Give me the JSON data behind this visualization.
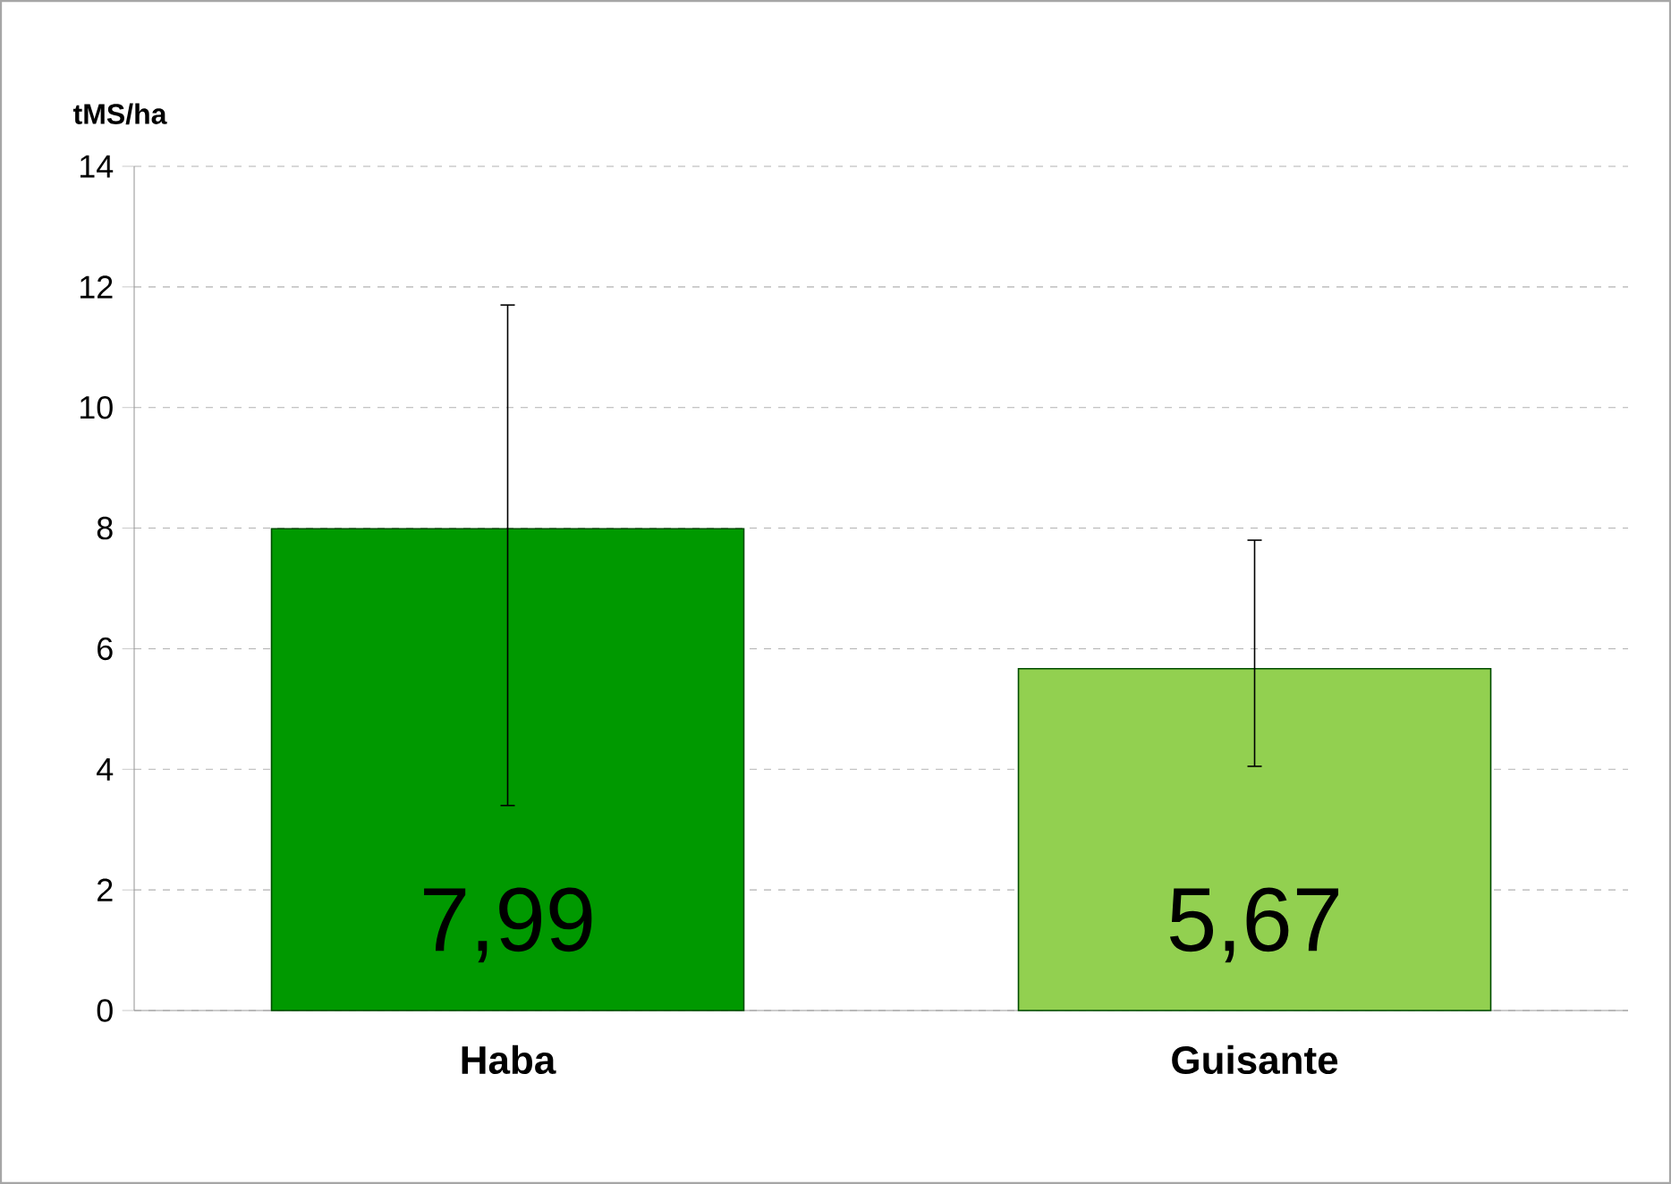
{
  "chart_data": {
    "type": "bar",
    "ylabel": "tMS/ha",
    "categories": [
      "Haba",
      "Guisante"
    ],
    "values": [
      7.99,
      5.67
    ],
    "colors": [
      "#009900",
      "#92d050"
    ],
    "value_labels": [
      "7,99",
      "5,67"
    ],
    "errors": [
      [
        3.4,
        11.7
      ],
      [
        4.05,
        7.8
      ]
    ],
    "ylim": [
      0,
      14
    ],
    "yticks": [
      0,
      2,
      4,
      6,
      8,
      10,
      12,
      14
    ],
    "grid": "y"
  }
}
